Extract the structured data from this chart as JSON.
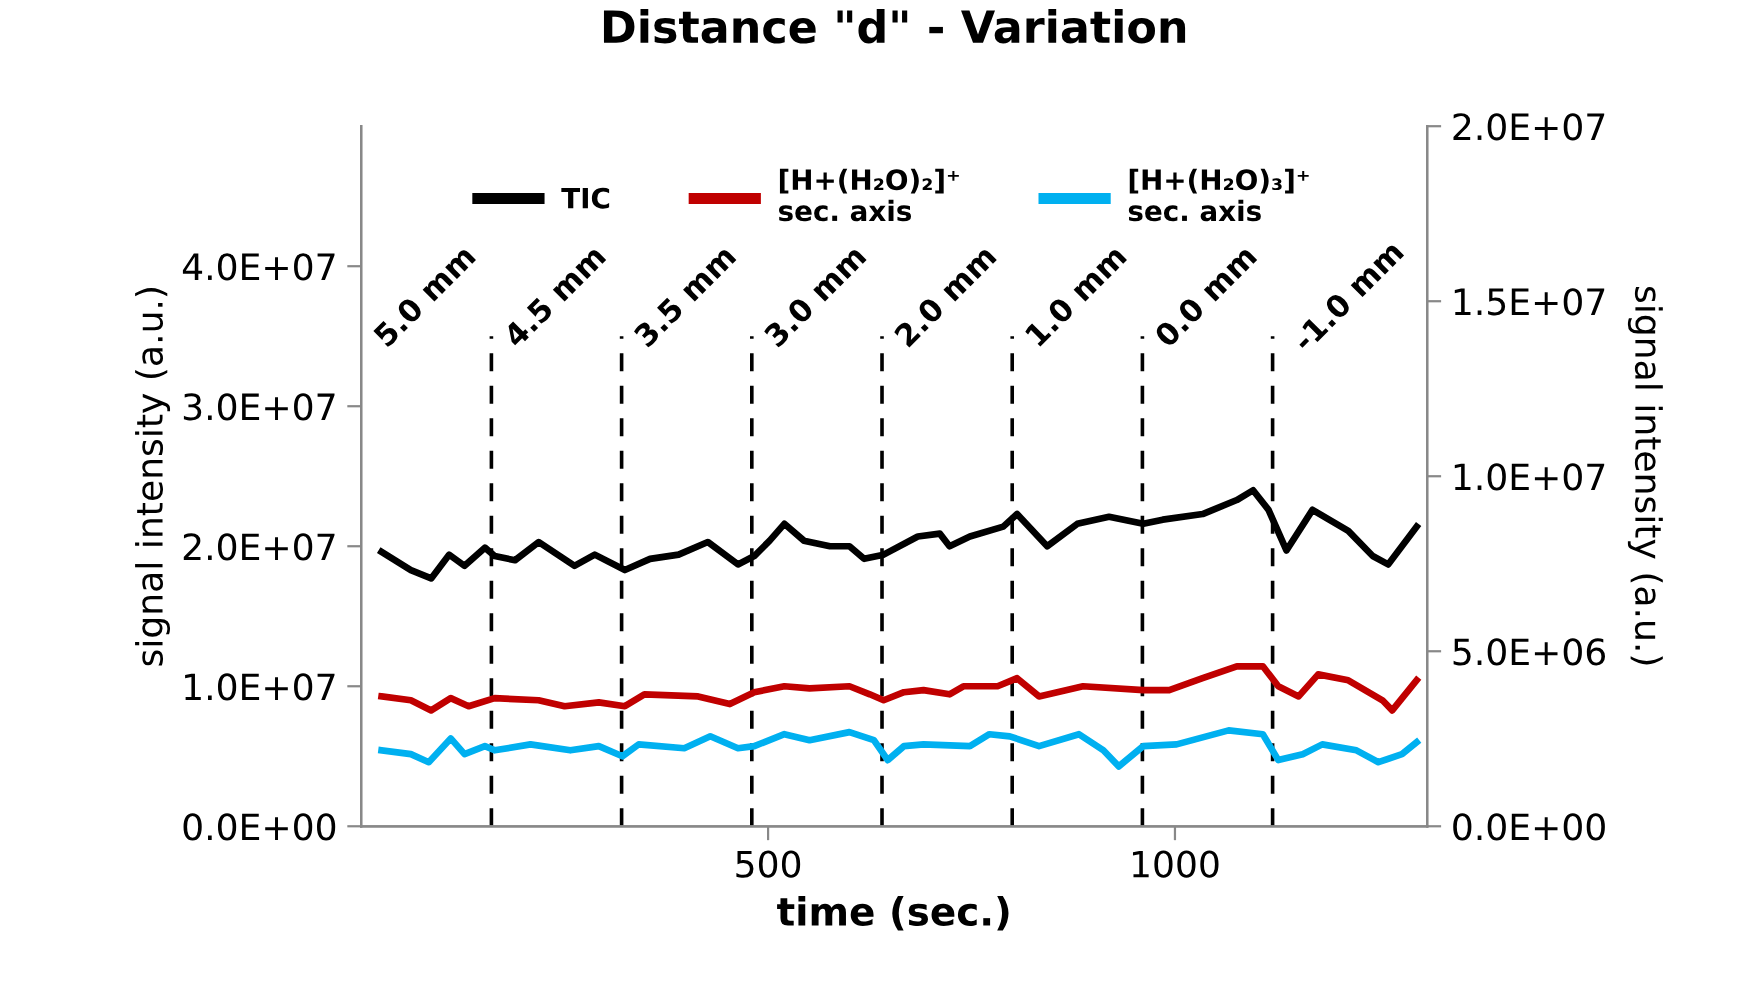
{
  "chart_data": {
    "type": "line",
    "title": "Distance \"d\" - Variation",
    "xlabel": "time (sec.)",
    "ylabel": "signal intensity (a.u.)",
    "y2label": "signal intensity (a.u.)",
    "xlim": [
      0,
      1310
    ],
    "xticks": [
      500,
      1000
    ],
    "ylim": [
      0,
      50000000
    ],
    "yticks": [
      {
        "value": 0,
        "label": "0.0E+00"
      },
      {
        "value": 10000000,
        "label": "1.0E+07"
      },
      {
        "value": 20000000,
        "label": "2.0E+07"
      },
      {
        "value": 30000000,
        "label": "3.0E+07"
      },
      {
        "value": 40000000,
        "label": "4.0E+07"
      }
    ],
    "y2lim": [
      0,
      20000000
    ],
    "y2ticks": [
      {
        "value": 0,
        "label": "0.0E+00"
      },
      {
        "value": 5000000,
        "label": "5.0E+06"
      },
      {
        "value": 10000000,
        "label": "1.0E+07"
      },
      {
        "value": 15000000,
        "label": "1.5E+07"
      },
      {
        "value": 20000000,
        "label": "2.0E+07"
      }
    ],
    "grid": false,
    "legend": "top",
    "marker": "none",
    "line_style": "solid",
    "series": [
      {
        "name": "TIC",
        "color": "#000000",
        "x": [
          25,
          61,
          86,
          108,
          127,
          152,
          164,
          189,
          218,
          262,
          287,
          324,
          355,
          390,
          426,
          463,
          483,
          502,
          520,
          544,
          576,
          600,
          618,
          642,
          684,
          711,
          723,
          748,
          789,
          806,
          843,
          880,
          919,
          961,
          985,
          1034,
          1076,
          1096,
          1115,
          1137,
          1169,
          1213,
          1243,
          1262,
          1297
        ],
        "values": [
          19600000,
          18300000,
          17700000,
          19400000,
          18600000,
          19900000,
          19300000,
          19000000,
          20300000,
          18600000,
          19400000,
          18300000,
          19100000,
          19400000,
          20300000,
          18700000,
          19300000,
          20400000,
          21600000,
          20400000,
          20000000,
          20000000,
          19100000,
          19400000,
          20700000,
          20900000,
          20000000,
          20700000,
          21400000,
          22300000,
          20000000,
          21600000,
          22100000,
          21600000,
          21900000,
          22300000,
          23300000,
          24000000,
          22600000,
          19700000,
          22600000,
          21100000,
          19300000,
          18700000,
          21400000
        ]
      },
      {
        "name": "[H+(H₂O)₂]⁺\nsec. axis",
        "color": "#c00000",
        "axis": "y2",
        "x": [
          25,
          61,
          86,
          110,
          132,
          164,
          218,
          250,
          292,
          324,
          348,
          414,
          453,
          483,
          520,
          551,
          600,
          625,
          642,
          667,
          691,
          723,
          740,
          782,
          806,
          833,
          887,
          961,
          993,
          1034,
          1076,
          1108,
          1127,
          1152,
          1176,
          1213,
          1255,
          1267,
          1297
        ],
        "values": [
          3710000,
          3600000,
          3310000,
          3660000,
          3430000,
          3660000,
          3600000,
          3430000,
          3540000,
          3430000,
          3770000,
          3710000,
          3490000,
          3830000,
          4000000,
          3940000,
          4000000,
          3770000,
          3600000,
          3830000,
          3890000,
          3770000,
          4000000,
          4000000,
          4230000,
          3710000,
          4000000,
          3890000,
          3890000,
          4230000,
          4570000,
          4570000,
          4000000,
          3710000,
          4340000,
          4170000,
          3600000,
          3310000,
          4170000
        ]
      },
      {
        "name": "[H+(H₂O)₃]⁺\nsec. axis",
        "color": "#00b0f0",
        "axis": "y2",
        "x": [
          25,
          61,
          83,
          110,
          127,
          152,
          164,
          208,
          257,
          292,
          321,
          341,
          397,
          429,
          463,
          483,
          520,
          551,
          600,
          630,
          647,
          667,
          691,
          748,
          772,
          797,
          833,
          882,
          912,
          931,
          961,
          1002,
          1066,
          1108,
          1127,
          1157,
          1181,
          1223,
          1250,
          1279,
          1297
        ],
        "values": [
          2170000,
          2060000,
          1830000,
          2510000,
          2060000,
          2290000,
          2170000,
          2340000,
          2170000,
          2290000,
          2000000,
          2340000,
          2230000,
          2570000,
          2230000,
          2290000,
          2630000,
          2460000,
          2690000,
          2460000,
          1890000,
          2290000,
          2340000,
          2290000,
          2630000,
          2570000,
          2290000,
          2630000,
          2170000,
          1710000,
          2290000,
          2340000,
          2740000,
          2630000,
          1890000,
          2060000,
          2340000,
          2170000,
          1830000,
          2060000,
          2400000
        ]
      }
    ],
    "ref_lines": [
      {
        "axis": "x",
        "value": 160,
        "color": "#000000",
        "line_style": "dashed"
      },
      {
        "axis": "x",
        "value": 320,
        "color": "#000000",
        "line_style": "dashed"
      },
      {
        "axis": "x",
        "value": 480,
        "color": "#000000",
        "line_style": "dashed"
      },
      {
        "axis": "x",
        "value": 640,
        "color": "#000000",
        "line_style": "dashed"
      },
      {
        "axis": "x",
        "value": 800,
        "color": "#000000",
        "line_style": "dashed"
      },
      {
        "axis": "x",
        "value": 960,
        "color": "#000000",
        "line_style": "dashed"
      },
      {
        "axis": "x",
        "value": 1120,
        "color": "#000000",
        "line_style": "dashed"
      }
    ],
    "annotations": [
      "5.0 mm",
      "4.5 mm",
      "3.5 mm",
      "3.0 mm",
      "2.0 mm",
      "1.0 mm",
      "0.0 mm",
      "-1.0 mm"
    ]
  }
}
